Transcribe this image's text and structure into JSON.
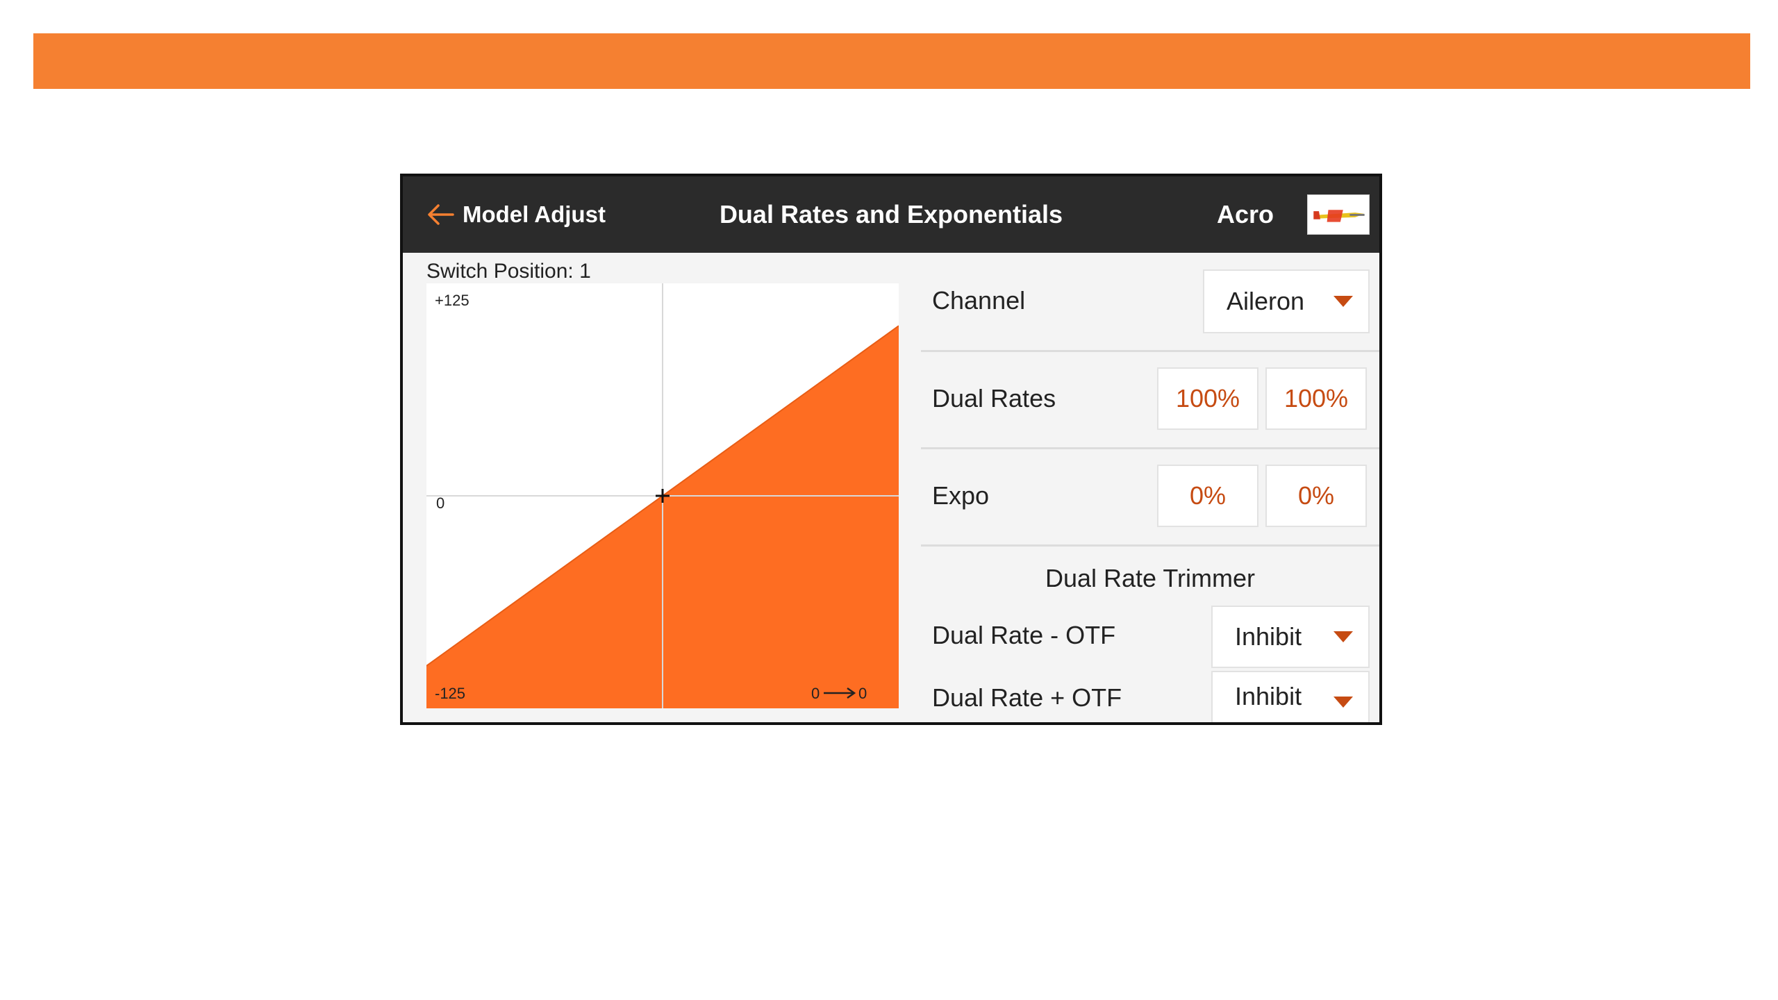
{
  "colors": {
    "banner": "#f58031",
    "curve_fill": "#fe6d22",
    "header_bg": "#2b2b2b",
    "value_text": "#c64b12",
    "back_arrow": "#f58031"
  },
  "header": {
    "back_label": "Model Adjust",
    "title": "Dual Rates and Exponentials",
    "model_name": "Acro"
  },
  "graph": {
    "switch_position_label": "Switch Position: 1",
    "y_top_label": "+125",
    "y_mid_label": "0",
    "y_bottom_label": "-125",
    "readout_left": "0",
    "readout_right": "0"
  },
  "chart_data": {
    "type": "area",
    "x": [
      -100,
      0,
      100
    ],
    "y": [
      -100,
      0,
      100
    ],
    "ylim": [
      -125,
      125
    ],
    "xlim": [
      -100,
      100
    ]
  },
  "channel": {
    "label": "Channel",
    "value": "Aileron"
  },
  "dual_rates": {
    "label": "Dual Rates",
    "value_1": "100%",
    "value_2": "100%"
  },
  "expo": {
    "label": "Expo",
    "value_1": "0%",
    "value_2": "0%"
  },
  "trimmer": {
    "section_title": "Dual Rate Trimmer",
    "minus_label": "Dual Rate - OTF",
    "minus_value": "Inhibit",
    "plus_label": "Dual Rate + OTF",
    "plus_value": "Inhibit"
  }
}
